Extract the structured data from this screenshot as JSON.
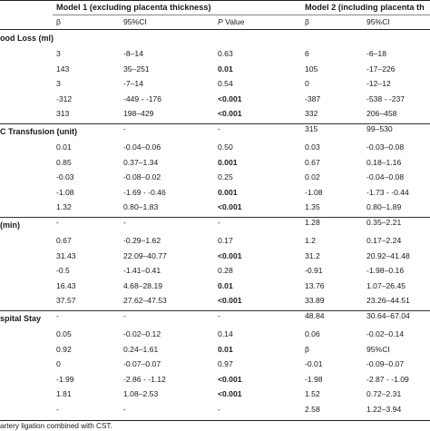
{
  "header": {
    "model1": "Model 1 (excluding placenta thickness)",
    "model2": "Model 2 (including placenta th",
    "col_beta": "β",
    "col_ci": "95%CI",
    "col_p_italic": "P",
    "col_p_rest": " Value"
  },
  "sections": [
    {
      "title": "ood Loss (ml)",
      "rows": [
        {
          "b1": "3",
          "ci1": "-8–14",
          "p": "0.63",
          "pbold": false,
          "b2": "6",
          "ci2": "-6–18"
        },
        {
          "b1": "143",
          "ci1": "35–251",
          "p": "0.01",
          "pbold": true,
          "b2": "105",
          "ci2": "-17–226"
        },
        {
          "b1": "3",
          "ci1": "-7–14",
          "p": "0.54",
          "pbold": false,
          "b2": "0",
          "ci2": "-12–12"
        },
        {
          "b1": "-312",
          "ci1": "-449 - -176",
          "p": "<0.001",
          "pbold": true,
          "b2": "-387",
          "ci2": "-538 - -237"
        },
        {
          "b1": "313",
          "ci1": "198–429",
          "p": "<0.001",
          "pbold": true,
          "b2": "332",
          "ci2": "206–458"
        },
        {
          "b1": "-",
          "ci1": "-",
          "p": "-",
          "pbold": false,
          "b2": "315",
          "ci2": "99–530"
        }
      ]
    },
    {
      "title": "C Transfusion (unit)",
      "rows": [
        {
          "b1": "0.01",
          "ci1": "-0.04–0.06",
          "p": "0.50",
          "pbold": false,
          "b2": "0.03",
          "ci2": "-0.03–0.08"
        },
        {
          "b1": "0.85",
          "ci1": "0.37–1.34",
          "p": "0.001",
          "pbold": true,
          "b2": "0.67",
          "ci2": "0.18–1.16"
        },
        {
          "b1": "-0.03",
          "ci1": "-0.08–0.02",
          "p": "0.25",
          "pbold": false,
          "b2": "0.02",
          "ci2": "-0.04–0.08"
        },
        {
          "b1": "-1.08",
          "ci1": "-1.69 - -0.46",
          "p": "0.001",
          "pbold": true,
          "b2": "-1.08",
          "ci2": "-1.73 - -0.44"
        },
        {
          "b1": "1.32",
          "ci1": "0.80–1.83",
          "p": "<0.001",
          "pbold": true,
          "b2": "1.35",
          "ci2": "0.80–1.89"
        },
        {
          "b1": "-",
          "ci1": "-",
          "p": "-",
          "pbold": false,
          "b2": "1.28",
          "ci2": "0.35–2.21"
        }
      ]
    },
    {
      "title": "(min)",
      "rows": [
        {
          "b1": "0.67",
          "ci1": "-0.29–1.62",
          "p": "0.17",
          "pbold": false,
          "b2": "1.2",
          "ci2": "0.17–2.24"
        },
        {
          "b1": "31.43",
          "ci1": "22.09–40.77",
          "p": "<0.001",
          "pbold": true,
          "b2": "31.2",
          "ci2": "20.92–41.48"
        },
        {
          "b1": "-0.5",
          "ci1": "-1.41–0.41",
          "p": "0.28",
          "pbold": false,
          "b2": "-0.91",
          "ci2": "-1.98–0.16"
        },
        {
          "b1": "16.43",
          "ci1": "4.68–28.19",
          "p": "0.01",
          "pbold": true,
          "b2": "13.76",
          "ci2": "1.07–26.45"
        },
        {
          "b1": "37.57",
          "ci1": "27.62–47.53",
          "p": "<0.001",
          "pbold": true,
          "b2": "33.89",
          "ci2": "23.26–44.51"
        },
        {
          "b1": "-",
          "ci1": "-",
          "p": "-",
          "pbold": false,
          "b2": "48.84",
          "ci2": "30.64–67.04"
        }
      ]
    },
    {
      "title": "spital Stay",
      "rows": [
        {
          "b1": "0.05",
          "ci1": "-0.02–0.12",
          "p": "0.14",
          "pbold": false,
          "b2": "0.06",
          "ci2": "-0.02–0.14"
        },
        {
          "b1": "0.92",
          "ci1": "0.24–1.61",
          "p": "0.01",
          "pbold": true,
          "b2": "β",
          "ci2": "95%CI"
        },
        {
          "b1": "0",
          "ci1": "-0.07–0.07",
          "p": "0.97",
          "pbold": false,
          "b2": "-0.01",
          "ci2": "-0.09–0.07"
        },
        {
          "b1": "-1.99",
          "ci1": "-2.86 - -1.12",
          "p": "<0.001",
          "pbold": true,
          "b2": "-1.98",
          "ci2": "-2.87 - -1.09"
        },
        {
          "b1": "1.81",
          "ci1": "1.08–2.53",
          "p": "<0.001",
          "pbold": true,
          "b2": "1.52",
          "ci2": "0.72–2.31"
        },
        {
          "b1": "-",
          "ci1": "-",
          "p": "-",
          "pbold": false,
          "b2": "2.58",
          "ci2": "1.22–3.94"
        }
      ]
    }
  ],
  "footnote": "artery ligation combined with CST."
}
